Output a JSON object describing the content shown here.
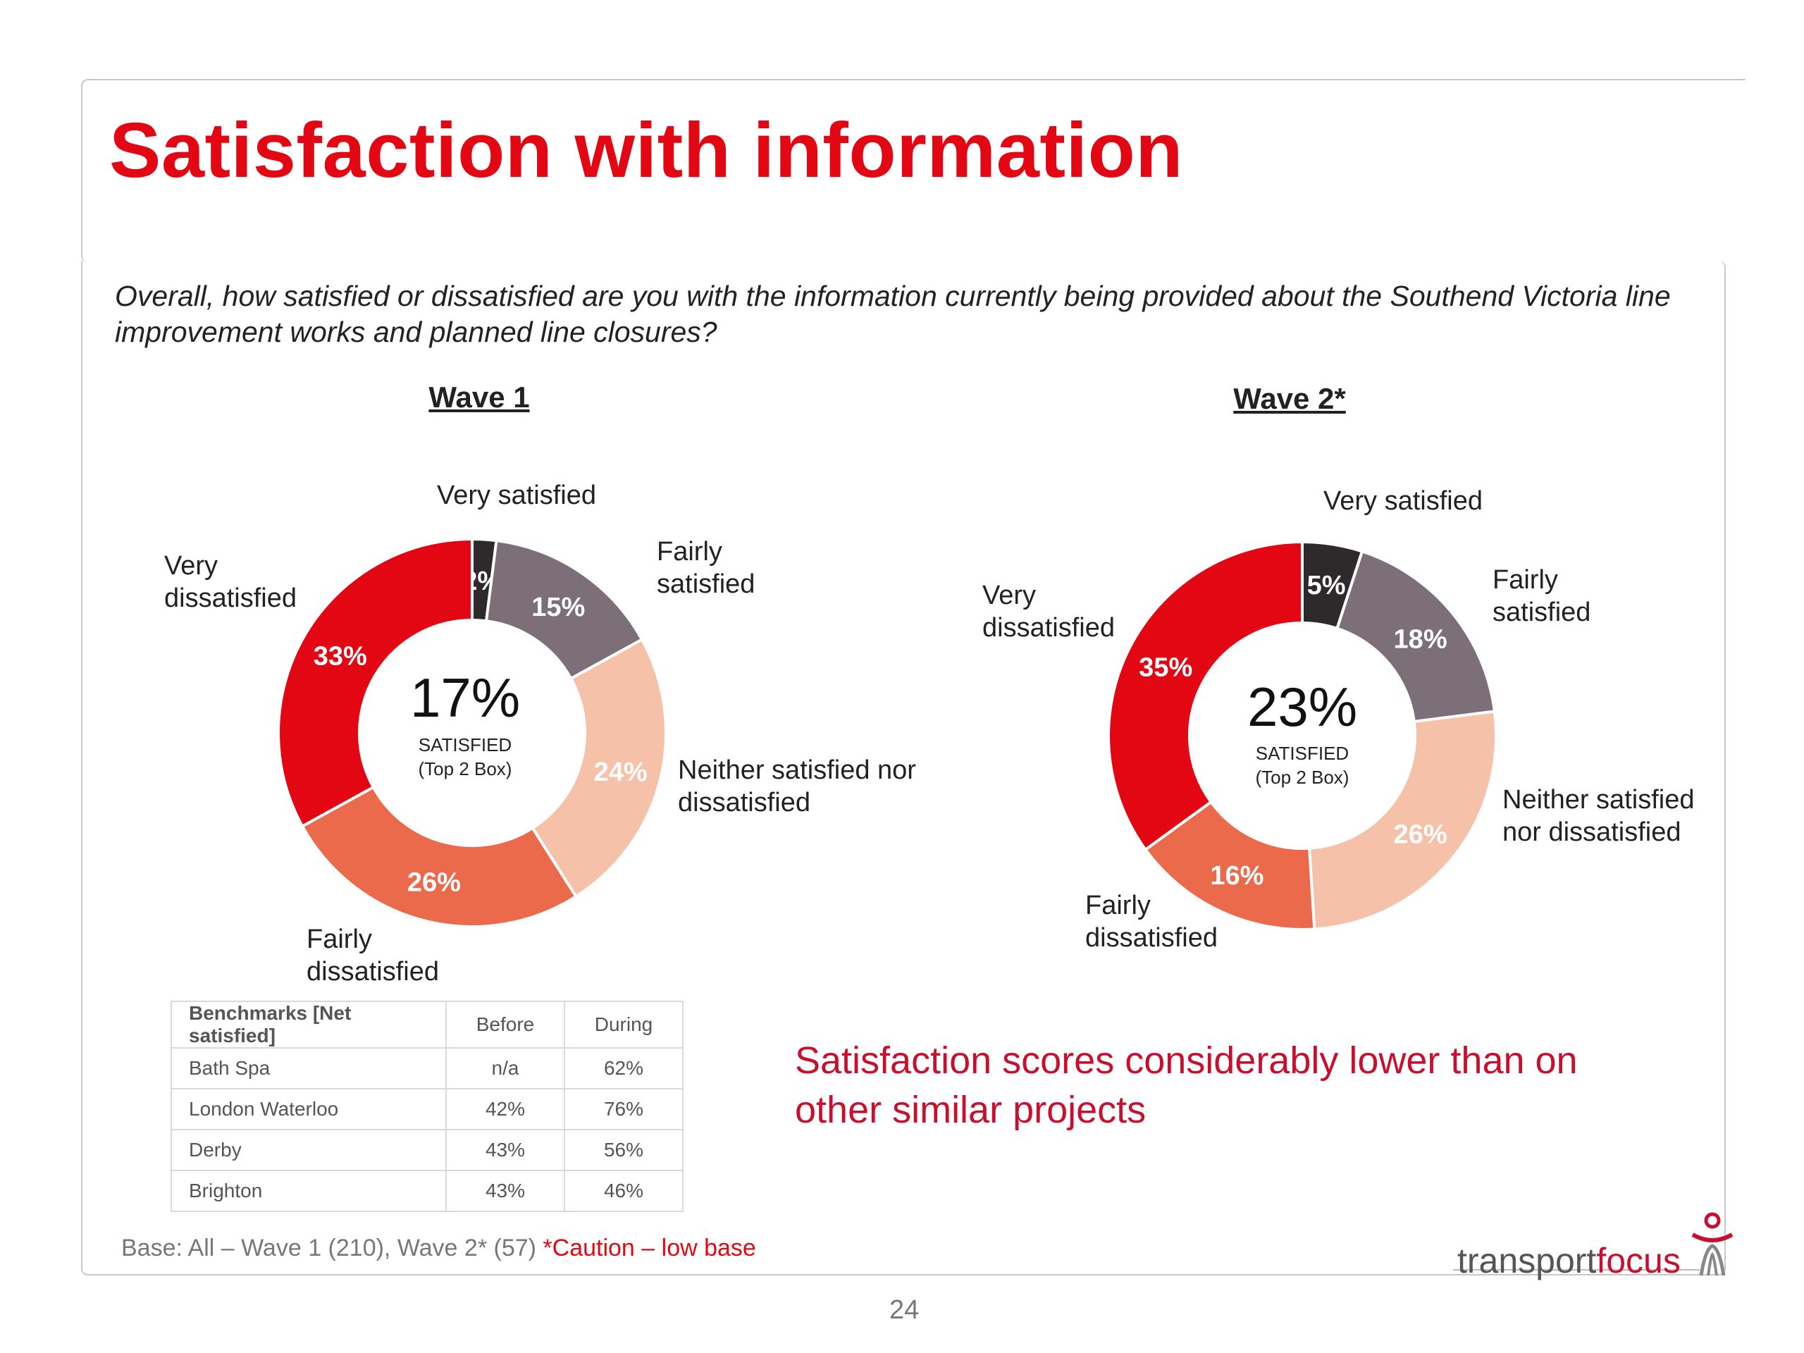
{
  "page": {
    "title": "Satisfaction with information",
    "question": "Overall, how satisfied or dissatisfied are you with the information currently being provided about the Southend Victoria line improvement works and planned line closures?",
    "callout": "Satisfaction scores considerably lower than on other similar projects",
    "base_text": "Base: All – Wave 1 (210), Wave 2* (57)",
    "base_warning": "*Caution – low base",
    "page_number": "24",
    "logo": {
      "part1": "transport",
      "part2": "focus"
    }
  },
  "colors": {
    "very_satisfied": "#2e2a2b",
    "fairly_satisfied": "#7d6f77",
    "neither": "#f5c1a9",
    "fairly_dissatisfied": "#eb6a4c",
    "very_dissatisfied": "#e30613",
    "title_red": "#e30613"
  },
  "chart_data": [
    {
      "type": "pie",
      "title": "Wave 1",
      "categories": [
        "Very satisfied",
        "Fairly satisfied",
        "Neither satisfied nor dissatisfied",
        "Fairly dissatisfied",
        "Very dissatisfied"
      ],
      "values": [
        2,
        15,
        24,
        26,
        33
      ],
      "value_labels": [
        "2%",
        "15%",
        "24%",
        "26%",
        "33%"
      ],
      "center_value": "17%",
      "center_label_1": "SATISFIED",
      "center_label_2": "(Top 2 Box)",
      "category_labels": {
        "very_satisfied": "Very satisfied",
        "fairly_satisfied": [
          "Fairly",
          "satisfied"
        ],
        "neither": [
          "Neither satisfied nor",
          "dissatisfied"
        ],
        "fairly_dissatisfied": [
          "Fairly",
          "dissatisfied"
        ],
        "very_dissatisfied": [
          "Very",
          "dissatisfied"
        ]
      }
    },
    {
      "type": "pie",
      "title": "Wave 2*",
      "categories": [
        "Very satisfied",
        "Fairly satisfied",
        "Neither satisfied nor dissatisfied",
        "Fairly dissatisfied",
        "Very dissatisfied"
      ],
      "values": [
        5,
        18,
        26,
        16,
        35
      ],
      "value_labels": [
        "5%",
        "18%",
        "26%",
        "16%",
        "35%"
      ],
      "center_value": "23%",
      "center_label_1": "SATISFIED",
      "center_label_2": "(Top 2 Box)",
      "category_labels": {
        "very_satisfied": "Very satisfied",
        "fairly_satisfied": [
          "Fairly",
          "satisfied"
        ],
        "neither": [
          "Neither satisfied",
          "nor dissatisfied"
        ],
        "fairly_dissatisfied": [
          "Fairly",
          "dissatisfied"
        ],
        "very_dissatisfied": [
          "Very",
          "dissatisfied"
        ]
      }
    }
  ],
  "benchmarks": {
    "headers": [
      "Benchmarks [Net satisfied]",
      "Before",
      "During"
    ],
    "rows": [
      [
        "Bath Spa",
        "n/a",
        "62%"
      ],
      [
        "London Waterloo",
        "42%",
        "76%"
      ],
      [
        "Derby",
        "43%",
        "56%"
      ],
      [
        "Brighton",
        "43%",
        "46%"
      ]
    ]
  }
}
